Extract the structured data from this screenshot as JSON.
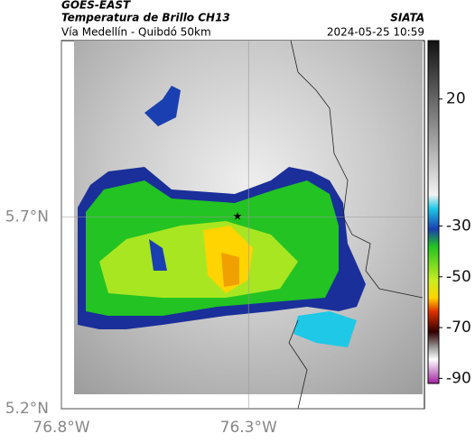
{
  "header": {
    "source": "GOES-EAST",
    "title": "Temperatura de Brillo CH13",
    "brand": "SIATA",
    "subtitle": "Vía Medellín - Quibdó 50km",
    "datetime": "2024-05-25 10:59"
  },
  "map": {
    "lonlim": [
      -76.8,
      -75.83
    ],
    "latlim": [
      5.2,
      6.16
    ],
    "lonticks": [
      {
        "value": -76.8,
        "label": "76.8°W"
      },
      {
        "value": -76.3,
        "label": "76.3°W"
      }
    ],
    "latticks": [
      {
        "value": 5.7,
        "label": "5.7°N"
      },
      {
        "value": 5.2,
        "label": "5.2°N"
      }
    ],
    "colorbar": {
      "clim": [
        -92,
        43
      ],
      "ticks": [
        20,
        -30,
        -50,
        -70,
        -90
      ]
    }
  }
}
